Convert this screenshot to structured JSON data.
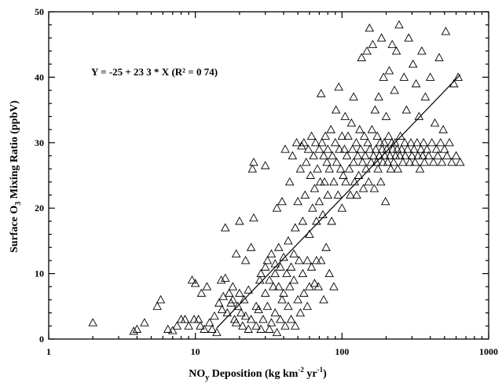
{
  "chart_data": {
    "type": "scatter",
    "xlabel_parts": {
      "pre": "NO",
      "sub": "y",
      "mid": " Deposition (kg km",
      "sup1": "-2",
      "mid2": " yr",
      "sup2": "-1",
      "post": ")"
    },
    "ylabel_parts": {
      "pre": "Surface O",
      "sub": "3",
      "post": " Mixing Ratio (ppbV)"
    },
    "xscale": "log",
    "xlim": [
      1,
      1000
    ],
    "ylim": [
      0,
      50
    ],
    "xticks": [
      1,
      10,
      100,
      1000
    ],
    "xtick_labels": [
      "1",
      "10",
      "100",
      "1000"
    ],
    "yticks": [
      0,
      10,
      20,
      30,
      40,
      50
    ],
    "ytick_labels": [
      "0",
      "10",
      "20",
      "30",
      "40",
      "50"
    ],
    "marker": "open-triangle",
    "fit": {
      "intercept": -25,
      "slope": 23.3,
      "r2": 0.74,
      "x_range": [
        14,
        640
      ]
    },
    "annotation": "Y = -25 + 23 3 * X   (R² = 0 74)",
    "grid": false,
    "points": [
      [
        2,
        2.5
      ],
      [
        3.8,
        1.2
      ],
      [
        4,
        1.5
      ],
      [
        4.5,
        2.5
      ],
      [
        5.5,
        5
      ],
      [
        5.8,
        6
      ],
      [
        6.5,
        1.5
      ],
      [
        7,
        1.3
      ],
      [
        7.5,
        2
      ],
      [
        8,
        3
      ],
      [
        8.5,
        3
      ],
      [
        9,
        2
      ],
      [
        9.5,
        9
      ],
      [
        9.8,
        3
      ],
      [
        10,
        8.5
      ],
      [
        10.5,
        3
      ],
      [
        10.8,
        2
      ],
      [
        11,
        7
      ],
      [
        11.5,
        1.5
      ],
      [
        12,
        8
      ],
      [
        12.5,
        2.5
      ],
      [
        13,
        1.5
      ],
      [
        13.5,
        3.5
      ],
      [
        14,
        1
      ],
      [
        14.5,
        5.5
      ],
      [
        15,
        9
      ],
      [
        15.2,
        4.5
      ],
      [
        15.5,
        6.5
      ],
      [
        16,
        9.3
      ],
      [
        16,
        17
      ],
      [
        16.5,
        4
      ],
      [
        17,
        7
      ],
      [
        17.5,
        5.5
      ],
      [
        18,
        6
      ],
      [
        18,
        8
      ],
      [
        18.5,
        3
      ],
      [
        19,
        2.5
      ],
      [
        19,
        13
      ],
      [
        19.5,
        5
      ],
      [
        20,
        18
      ],
      [
        20,
        7
      ],
      [
        20.5,
        4
      ],
      [
        21,
        2
      ],
      [
        21.5,
        6
      ],
      [
        22,
        3.5
      ],
      [
        22,
        12
      ],
      [
        23,
        7.5
      ],
      [
        23,
        1.5
      ],
      [
        24,
        3
      ],
      [
        24,
        14
      ],
      [
        24.5,
        26
      ],
      [
        25,
        27
      ],
      [
        25,
        18.5
      ],
      [
        26,
        5
      ],
      [
        26,
        2
      ],
      [
        27,
        4.5
      ],
      [
        27.5,
        9
      ],
      [
        28,
        1.5
      ],
      [
        28,
        10
      ],
      [
        29,
        3
      ],
      [
        30,
        11
      ],
      [
        30,
        7
      ],
      [
        30,
        26.5
      ],
      [
        31,
        12
      ],
      [
        31,
        5
      ],
      [
        32,
        1.5
      ],
      [
        32,
        9
      ],
      [
        33,
        2.5
      ],
      [
        33,
        13
      ],
      [
        34,
        8
      ],
      [
        35,
        10
      ],
      [
        35,
        4
      ],
      [
        35,
        11.5
      ],
      [
        36,
        1
      ],
      [
        36,
        20
      ],
      [
        37,
        8
      ],
      [
        37,
        14
      ],
      [
        38,
        3
      ],
      [
        38,
        11
      ],
      [
        39,
        6
      ],
      [
        39,
        21
      ],
      [
        40,
        7
      ],
      [
        40,
        12.5
      ],
      [
        41,
        2
      ],
      [
        41,
        29
      ],
      [
        42,
        10
      ],
      [
        43,
        15
      ],
      [
        43,
        5
      ],
      [
        44,
        8
      ],
      [
        44,
        24
      ],
      [
        45,
        11
      ],
      [
        45,
        3
      ],
      [
        46,
        28
      ],
      [
        47,
        9
      ],
      [
        47,
        13
      ],
      [
        48,
        17
      ],
      [
        48,
        2
      ],
      [
        49,
        30
      ],
      [
        50,
        6
      ],
      [
        50,
        21
      ],
      [
        51,
        12
      ],
      [
        52,
        26
      ],
      [
        52,
        4
      ],
      [
        53,
        29.5
      ],
      [
        54,
        10
      ],
      [
        54,
        18
      ],
      [
        55,
        30
      ],
      [
        55,
        7
      ],
      [
        56,
        22
      ],
      [
        57,
        27
      ],
      [
        58,
        12
      ],
      [
        58,
        5
      ],
      [
        59,
        29
      ],
      [
        60,
        16
      ],
      [
        60,
        8
      ],
      [
        61,
        25
      ],
      [
        62,
        31
      ],
      [
        62,
        11
      ],
      [
        63,
        20
      ],
      [
        64,
        28
      ],
      [
        65,
        8.5
      ],
      [
        65,
        23
      ],
      [
        66,
        30
      ],
      [
        67,
        12
      ],
      [
        67,
        18
      ],
      [
        68,
        26
      ],
      [
        69,
        8
      ],
      [
        70,
        29
      ],
      [
        70,
        21
      ],
      [
        71,
        24
      ],
      [
        72,
        37.5
      ],
      [
        72,
        12
      ],
      [
        73,
        30
      ],
      [
        74,
        19
      ],
      [
        75,
        28
      ],
      [
        75,
        6
      ],
      [
        76,
        24
      ],
      [
        77,
        31
      ],
      [
        78,
        14
      ],
      [
        79,
        27
      ],
      [
        80,
        22
      ],
      [
        80,
        29
      ],
      [
        82,
        10
      ],
      [
        82,
        26
      ],
      [
        84,
        32
      ],
      [
        85,
        18
      ],
      [
        86,
        28
      ],
      [
        88,
        24
      ],
      [
        88,
        8
      ],
      [
        90,
        30
      ],
      [
        91,
        35
      ],
      [
        92,
        27
      ],
      [
        94,
        22
      ],
      [
        95,
        38.5
      ],
      [
        96,
        29
      ],
      [
        98,
        26
      ],
      [
        100,
        31
      ],
      [
        100,
        20
      ],
      [
        102,
        25
      ],
      [
        104,
        29
      ],
      [
        105,
        34
      ],
      [
        106,
        24
      ],
      [
        108,
        28
      ],
      [
        110,
        31
      ],
      [
        112,
        26
      ],
      [
        114,
        22
      ],
      [
        116,
        33
      ],
      [
        118,
        29
      ],
      [
        120,
        27
      ],
      [
        120,
        37
      ],
      [
        122,
        24
      ],
      [
        125,
        30
      ],
      [
        126,
        22
      ],
      [
        128,
        28
      ],
      [
        130,
        25
      ],
      [
        132,
        32
      ],
      [
        134,
        29
      ],
      [
        136,
        43
      ],
      [
        138,
        27
      ],
      [
        140,
        23
      ],
      [
        142,
        31
      ],
      [
        144,
        28
      ],
      [
        146,
        26
      ],
      [
        148,
        44
      ],
      [
        150,
        30
      ],
      [
        152,
        24
      ],
      [
        154,
        47.5
      ],
      [
        155,
        29
      ],
      [
        158,
        27
      ],
      [
        160,
        32
      ],
      [
        162,
        45
      ],
      [
        164,
        28
      ],
      [
        166,
        23
      ],
      [
        168,
        35
      ],
      [
        170,
        29
      ],
      [
        172,
        27
      ],
      [
        174,
        31
      ],
      [
        176,
        26
      ],
      [
        178,
        37
      ],
      [
        180,
        28
      ],
      [
        182,
        30
      ],
      [
        184,
        24
      ],
      [
        186,
        46
      ],
      [
        188,
        29
      ],
      [
        190,
        27
      ],
      [
        192,
        40
      ],
      [
        194,
        30
      ],
      [
        196,
        28
      ],
      [
        198,
        21
      ],
      [
        200,
        34
      ],
      [
        202,
        29
      ],
      [
        205,
        27
      ],
      [
        208,
        31
      ],
      [
        210,
        41
      ],
      [
        212,
        28
      ],
      [
        215,
        26
      ],
      [
        218,
        30
      ],
      [
        220,
        45
      ],
      [
        222,
        29
      ],
      [
        225,
        27
      ],
      [
        228,
        38
      ],
      [
        230,
        30
      ],
      [
        232,
        28
      ],
      [
        235,
        44
      ],
      [
        238,
        29
      ],
      [
        240,
        26
      ],
      [
        245,
        48
      ],
      [
        248,
        28
      ],
      [
        250,
        31
      ],
      [
        255,
        29
      ],
      [
        260,
        27
      ],
      [
        265,
        40
      ],
      [
        268,
        30
      ],
      [
        270,
        28
      ],
      [
        275,
        35
      ],
      [
        280,
        29
      ],
      [
        285,
        46
      ],
      [
        290,
        27
      ],
      [
        295,
        30
      ],
      [
        300,
        28
      ],
      [
        305,
        42
      ],
      [
        310,
        29
      ],
      [
        315,
        27
      ],
      [
        320,
        39
      ],
      [
        325,
        30
      ],
      [
        330,
        28
      ],
      [
        335,
        34
      ],
      [
        340,
        26
      ],
      [
        345,
        29
      ],
      [
        350,
        44
      ],
      [
        355,
        28
      ],
      [
        360,
        30
      ],
      [
        365,
        27
      ],
      [
        370,
        37
      ],
      [
        380,
        29
      ],
      [
        390,
        28
      ],
      [
        400,
        40
      ],
      [
        410,
        30
      ],
      [
        420,
        27
      ],
      [
        430,
        33
      ],
      [
        440,
        29
      ],
      [
        450,
        28
      ],
      [
        460,
        43
      ],
      [
        470,
        30
      ],
      [
        480,
        27
      ],
      [
        490,
        32
      ],
      [
        500,
        29
      ],
      [
        510,
        47
      ],
      [
        520,
        28
      ],
      [
        540,
        30
      ],
      [
        560,
        27
      ],
      [
        580,
        39
      ],
      [
        600,
        28
      ],
      [
        620,
        40
      ],
      [
        640,
        27
      ]
    ]
  }
}
